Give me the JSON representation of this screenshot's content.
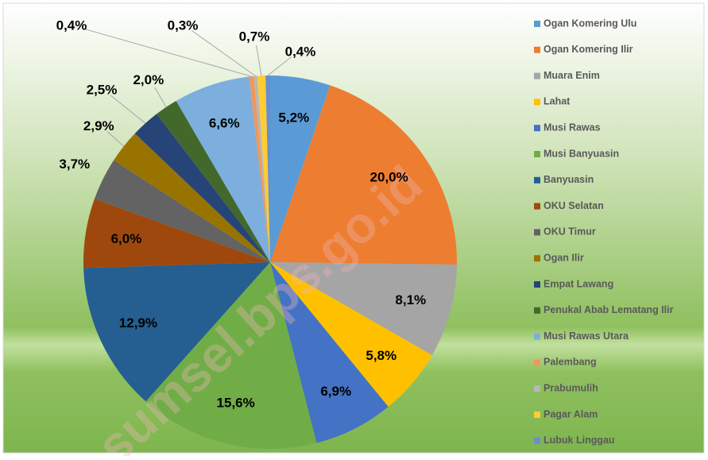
{
  "chart_data": {
    "type": "pie",
    "categories": [
      "Ogan Komering Ulu",
      "Ogan Komering Ilir",
      "Muara Enim",
      "Lahat",
      "Musi Rawas",
      "Musi Banyuasin",
      "Banyuasin",
      "OKU Selatan",
      "OKU Timur",
      "Ogan Ilir",
      "Empat Lawang",
      "Penukal Abab Lematang Ilir",
      "Musi Rawas Utara",
      "Palembang",
      "Prabumulih",
      "Pagar Alam",
      "Lubuk Linggau"
    ],
    "values": [
      5.2,
      20.0,
      8.1,
      5.8,
      6.9,
      15.6,
      12.9,
      6.0,
      3.7,
      2.9,
      2.5,
      2.0,
      6.6,
      0.4,
      0.3,
      0.7,
      0.4
    ],
    "value_labels": [
      "5,2%",
      "20,0%",
      "8,1%",
      "5,8%",
      "6,9%",
      "15,6%",
      "12,9%",
      "6,0%",
      "3,7%",
      "2,9%",
      "2,5%",
      "2,0%",
      "6,6%",
      "0,4%",
      "0,3%",
      "0,7%",
      "0,4%"
    ],
    "colors": [
      "#5b9bd5",
      "#ed7d31",
      "#a5a5a5",
      "#ffc000",
      "#4472c4",
      "#70ad47",
      "#255e91",
      "#9e480e",
      "#636363",
      "#997300",
      "#264478",
      "#43682b",
      "#7cafdd",
      "#f1975a",
      "#b7b7b7",
      "#ffcd33",
      "#698ed0"
    ],
    "legend": "right",
    "watermark": "sumsel.bps.go.id"
  }
}
